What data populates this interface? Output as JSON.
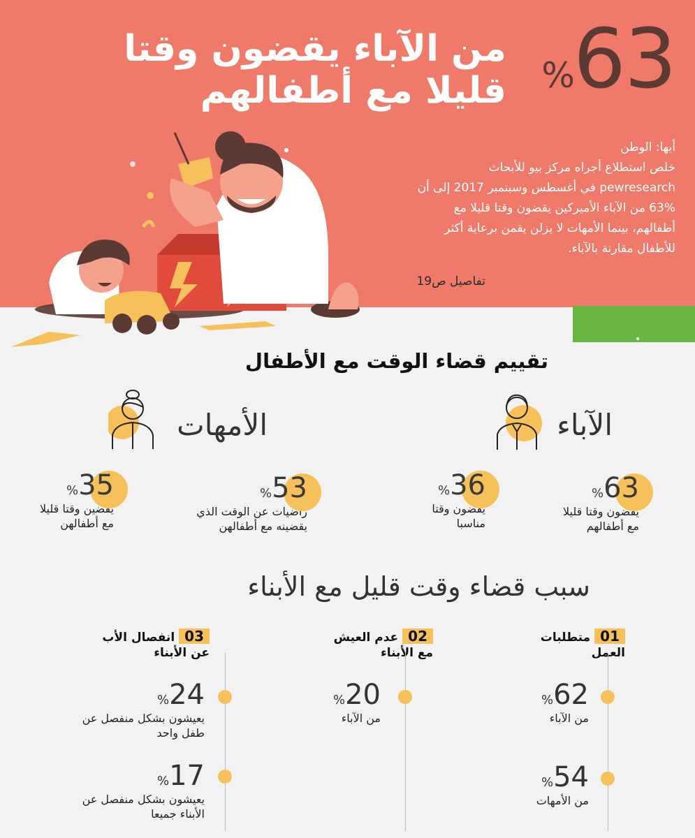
{
  "header": {
    "big_number": "63",
    "big_unit": "%",
    "title_line1": "من الآباء يقضون وقتا",
    "title_line2": "قليلا مع أطفالهم",
    "intro": [
      "أبها: الوطن",
      "خلص استطلاع أجراه مركز بيو للأبحاث",
      "pewresearch في أغسطس وسبتمبر 2017 إلى أن",
      "63% من الآباء الأميركين يقضون وقتا قليلا مع",
      "أطفالهم، بينما الأمهات لا يزلن يقمن برعاية أكثر",
      "للأطفال مقارنة بالآباء."
    ],
    "details": "تفاصيل ص19"
  },
  "colors": {
    "hero": "#ef7a6a",
    "accent": "#f6c15a",
    "green": "#69b644",
    "dark_brown": "#5c3a33"
  },
  "icons": {
    "father": "father-icon",
    "mother": "mother-icon"
  },
  "section1": {
    "title": "تقييم قضاء الوقت مع الأطفال",
    "fathers_label": "الآباء",
    "mothers_label": "الأمهات",
    "stats": [
      {
        "value": "63",
        "unit": "%",
        "line1": "يقضون وقتا قليلا",
        "line2": "مع أطفالهم"
      },
      {
        "value": "36",
        "unit": "%",
        "line1": "يقضون وقتا",
        "line2": "مناسبا"
      },
      {
        "value": "53",
        "unit": "%",
        "line1": "راضيات عن الوقت الذي",
        "line2": "يقضينه مع أطفالهن"
      },
      {
        "value": "35",
        "unit": "%",
        "line1": "يقضين وقتا قليلا",
        "line2": "مع أطفالهن"
      }
    ]
  },
  "section2": {
    "title": "سبب قضاء وقت قليل مع الأبناء",
    "columns": [
      {
        "index": "01",
        "head1": "متطلبات",
        "head2": "العمل",
        "items": [
          {
            "value": "62",
            "unit": "%",
            "line1": "من الآباء",
            "line2": ""
          },
          {
            "value": "54",
            "unit": "%",
            "line1": "من الأمهات",
            "line2": ""
          }
        ]
      },
      {
        "index": "02",
        "head1": "عدم العيش",
        "head2": "مع الأبناء",
        "items": [
          {
            "value": "20",
            "unit": "%",
            "line1": "من الآباء",
            "line2": ""
          }
        ]
      },
      {
        "index": "03",
        "head1": "انفصال الأب",
        "head2": "عن الأبناء",
        "items": [
          {
            "value": "24",
            "unit": "%",
            "line1": "يعيشون بشكل منفصل عن",
            "line2": "طفل واحد"
          },
          {
            "value": "17",
            "unit": "%",
            "line1": "يعيشون بشكل منفصل عن",
            "line2": "الأبناء جميعا"
          }
        ]
      }
    ]
  }
}
